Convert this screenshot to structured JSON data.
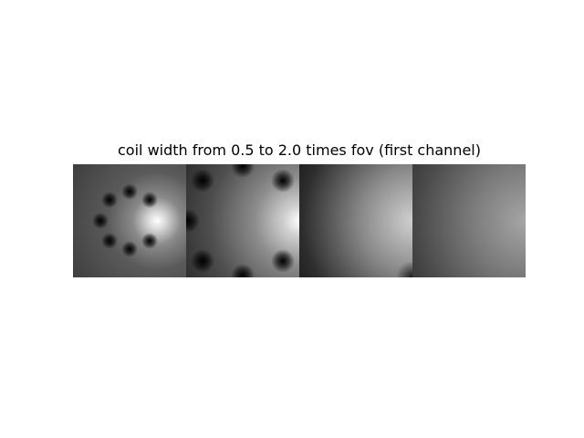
{
  "title": "coil width from 0.5 to 2.0 times fov (first channel)",
  "panels": [
    {
      "name": "panel-1",
      "colormap": "gray"
    },
    {
      "name": "panel-2",
      "colormap": "gray"
    },
    {
      "name": "panel-3",
      "colormap": "gray"
    },
    {
      "name": "panel-4",
      "colormap": "gray"
    }
  ]
}
